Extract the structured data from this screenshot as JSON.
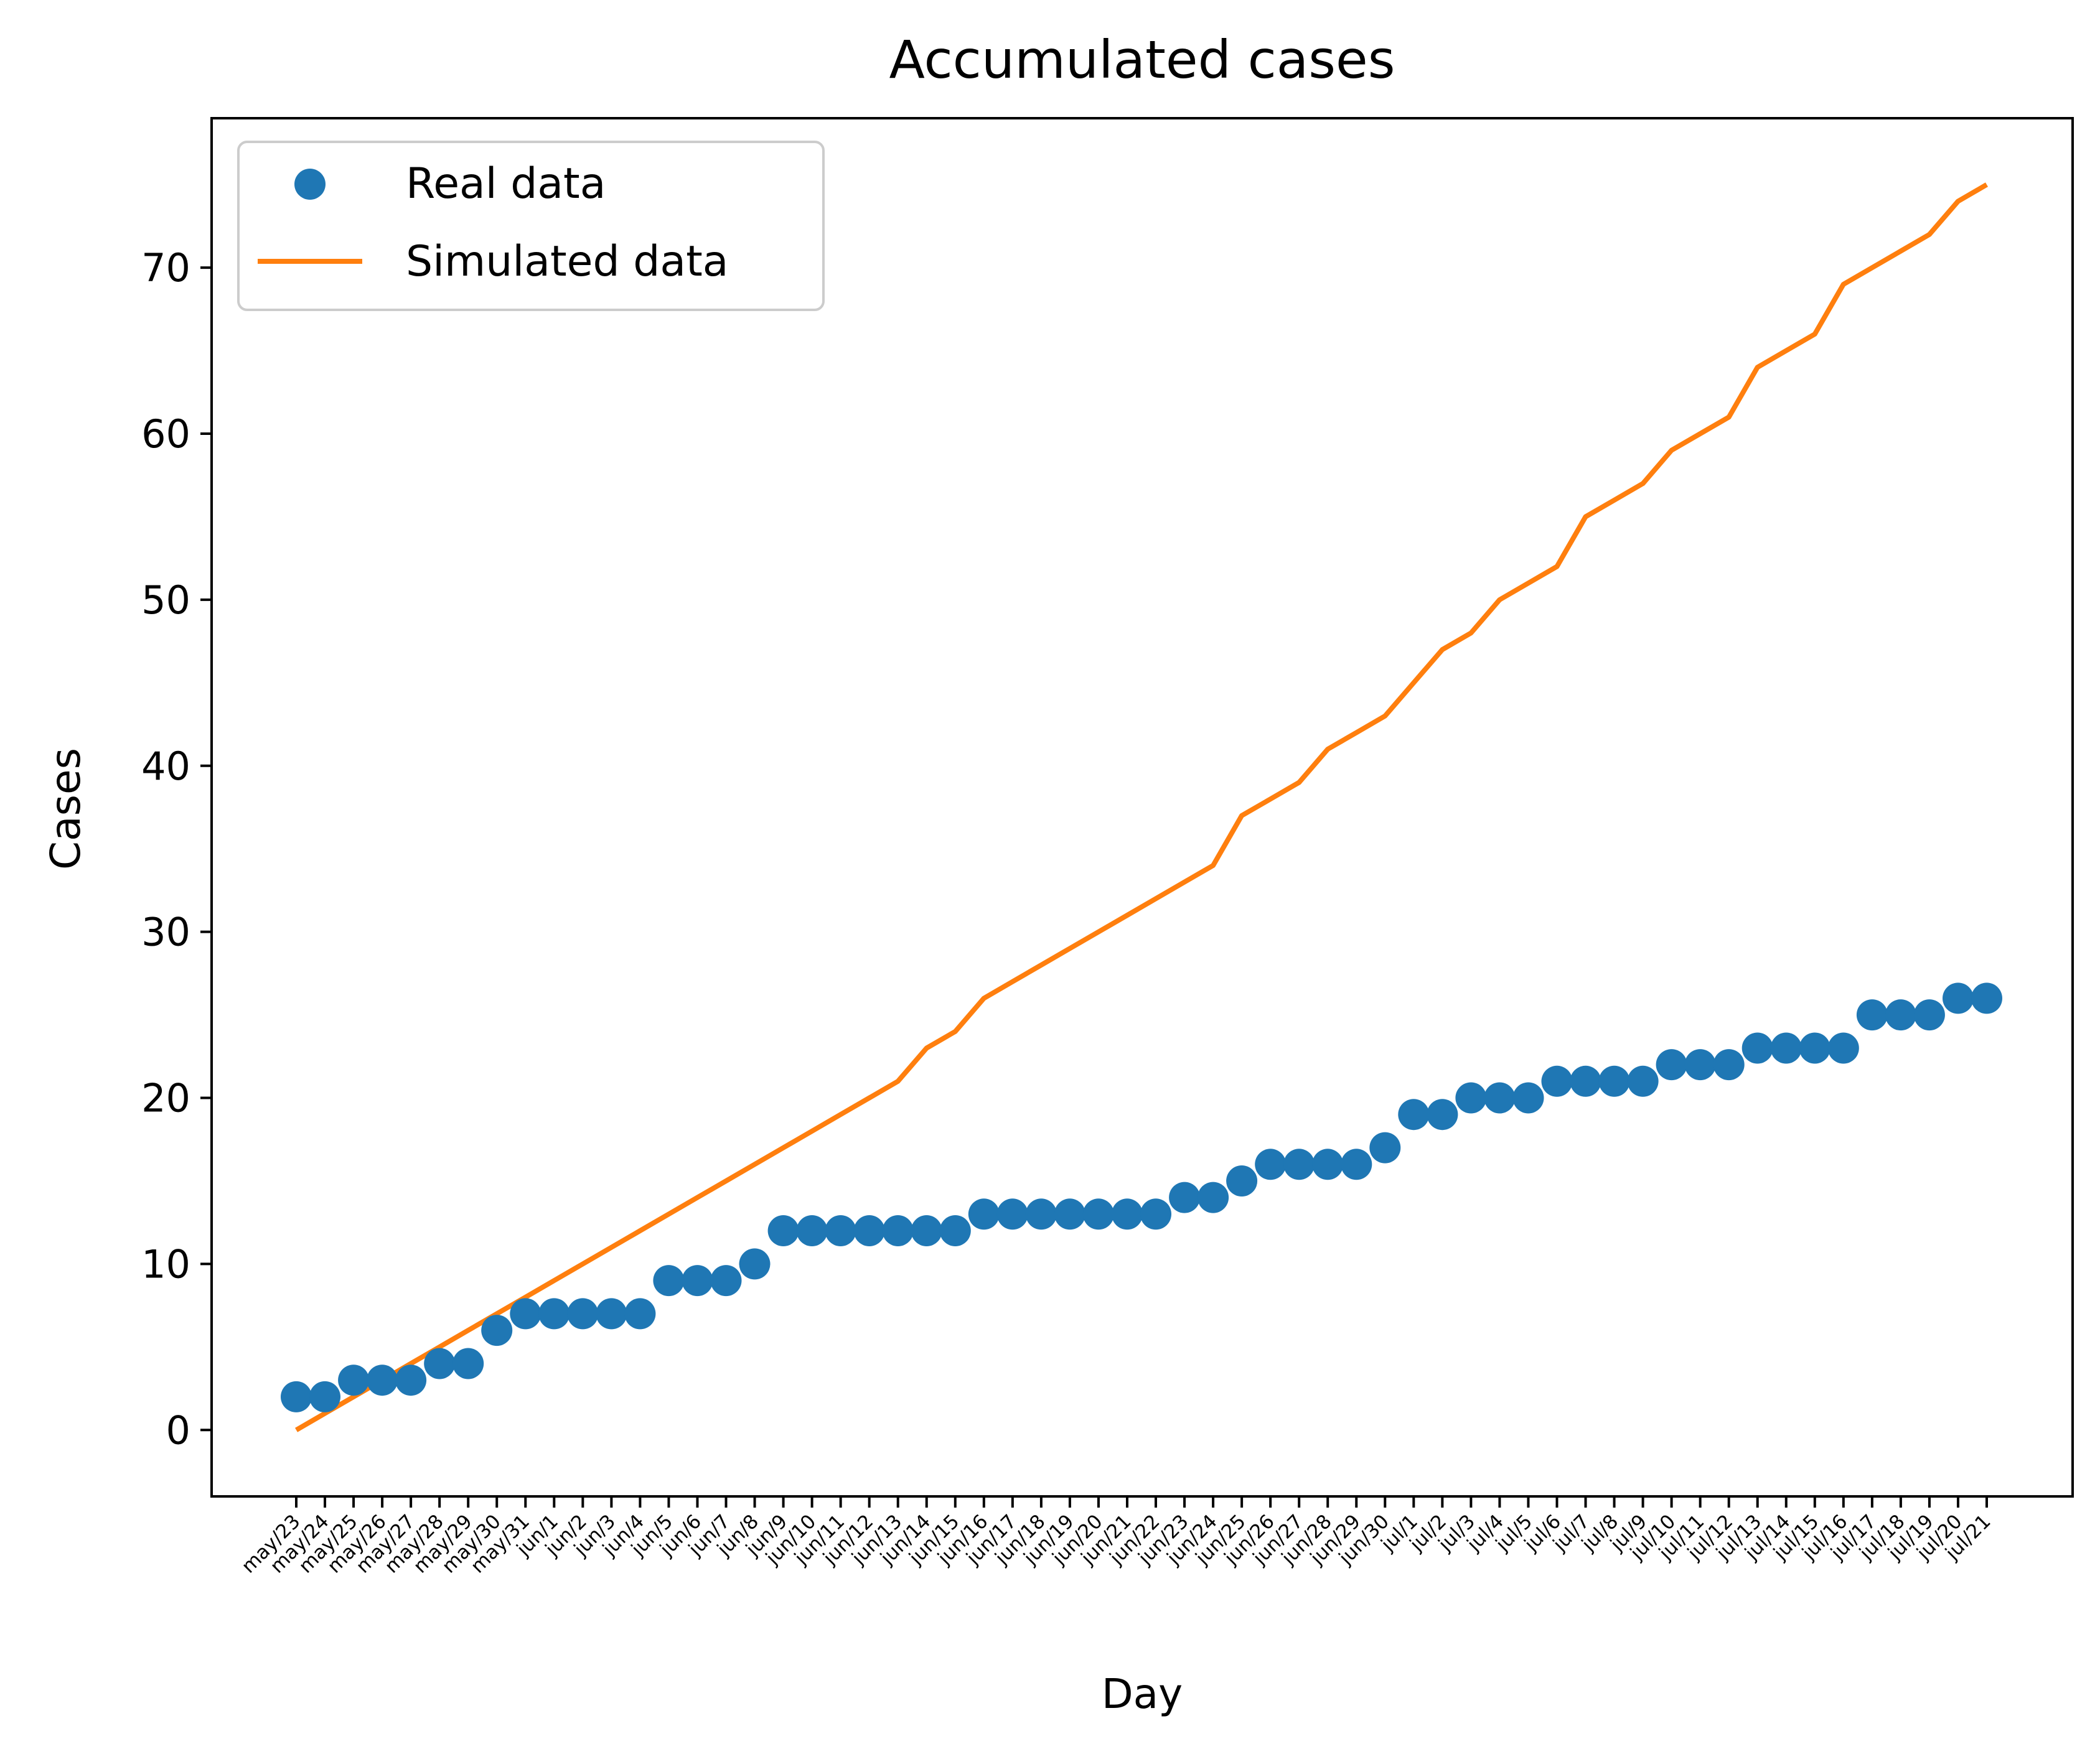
{
  "chart_data": {
    "type": "line",
    "title": "Accumulated cases",
    "xlabel": "Day",
    "ylabel": "Cases",
    "ylim": [
      -4,
      79
    ],
    "yticks": [
      0,
      10,
      20,
      30,
      40,
      50,
      60,
      70
    ],
    "grid": false,
    "legend_position": "top-left",
    "categories": [
      "may/23",
      "may/24",
      "may/25",
      "may/26",
      "may/27",
      "may/28",
      "may/29",
      "may/30",
      "may/31",
      "jun/1",
      "jun/2",
      "jun/3",
      "jun/4",
      "jun/5",
      "jun/6",
      "jun/7",
      "jun/8",
      "jun/9",
      "jun/10",
      "jun/11",
      "jun/12",
      "jun/13",
      "jun/14",
      "jun/15",
      "jun/16",
      "jun/17",
      "jun/18",
      "jun/19",
      "jun/20",
      "jun/21",
      "jun/22",
      "jun/23",
      "jun/24",
      "jun/25",
      "jun/26",
      "jun/27",
      "jun/28",
      "jun/29",
      "jun/30",
      "jul/1",
      "jul/2",
      "jul/3",
      "jul/4",
      "jul/5",
      "jul/6",
      "jul/7",
      "jul/8",
      "jul/9",
      "jul/10",
      "jul/11",
      "jul/12",
      "jul/13",
      "jul/14",
      "jul/15",
      "jul/16",
      "jul/17",
      "jul/18",
      "jul/19",
      "jul/20",
      "jul/21"
    ],
    "series": [
      {
        "name": "Real data",
        "style": "markers",
        "color": "#1f77b4",
        "values": [
          2,
          2,
          3,
          3,
          3,
          4,
          4,
          6,
          7,
          7,
          7,
          7,
          7,
          9,
          9,
          9,
          10,
          12,
          12,
          12,
          12,
          12,
          12,
          12,
          13,
          13,
          13,
          13,
          13,
          13,
          13,
          14,
          14,
          15,
          16,
          16,
          16,
          16,
          17,
          19,
          19,
          20,
          20,
          20,
          21,
          21,
          21,
          21,
          22,
          22,
          22,
          23,
          23,
          23,
          23,
          25,
          25,
          25,
          26,
          26
        ]
      },
      {
        "name": "Simulated data",
        "style": "line",
        "color": "#ff7f0e",
        "values": [
          0,
          1,
          2,
          3,
          4,
          5,
          6,
          7,
          8,
          9,
          10,
          11,
          12,
          13,
          14,
          15,
          16,
          17,
          18,
          19,
          20,
          21,
          23,
          24,
          26,
          27,
          28,
          29,
          30,
          31,
          32,
          33,
          34,
          37,
          38,
          39,
          41,
          42,
          43,
          45,
          47,
          48,
          50,
          51,
          52,
          55,
          56,
          57,
          59,
          60,
          61,
          64,
          65,
          66,
          69,
          70,
          71,
          72,
          74,
          75
        ]
      }
    ]
  }
}
